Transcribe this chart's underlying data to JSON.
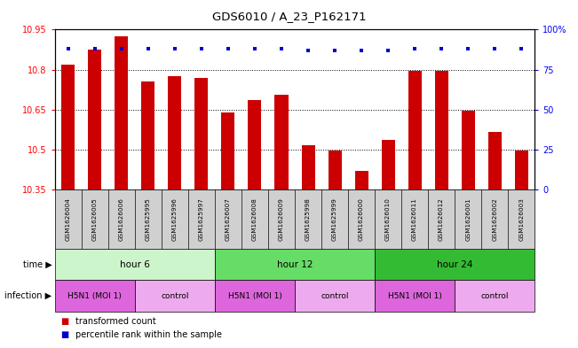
{
  "title": "GDS6010 / A_23_P162171",
  "samples": [
    "GSM1626004",
    "GSM1626005",
    "GSM1626006",
    "GSM1625995",
    "GSM1625996",
    "GSM1625997",
    "GSM1626007",
    "GSM1626008",
    "GSM1626009",
    "GSM1625998",
    "GSM1625999",
    "GSM1626000",
    "GSM1626010",
    "GSM1626011",
    "GSM1626012",
    "GSM1626001",
    "GSM1626002",
    "GSM1626003"
  ],
  "bar_values": [
    10.82,
    10.875,
    10.925,
    10.755,
    10.775,
    10.77,
    10.64,
    10.685,
    10.705,
    10.515,
    10.495,
    10.42,
    10.535,
    10.795,
    10.795,
    10.645,
    10.565,
    10.495
  ],
  "percentile_values": [
    88,
    88,
    88,
    88,
    88,
    88,
    88,
    88,
    88,
    87,
    87,
    87,
    87,
    88,
    88,
    88,
    88,
    88
  ],
  "ylim_left": [
    10.35,
    10.95
  ],
  "ylim_right": [
    0,
    100
  ],
  "yticks_left": [
    10.35,
    10.5,
    10.65,
    10.8,
    10.95
  ],
  "ytick_labels_left": [
    "10.35",
    "10.5",
    "10.65",
    "10.8",
    "10.95"
  ],
  "yticks_right": [
    0,
    25,
    50,
    75,
    100
  ],
  "ytick_labels_right": [
    "0",
    "25",
    "50",
    "75",
    "100%"
  ],
  "bar_color": "#CC0000",
  "dot_color": "#0000CC",
  "bar_bottom": 10.35,
  "time_groups": [
    {
      "label": "hour 6",
      "start": 0,
      "end": 6,
      "color": "#ccf5cc"
    },
    {
      "label": "hour 12",
      "start": 6,
      "end": 12,
      "color": "#66dd66"
    },
    {
      "label": "hour 24",
      "start": 12,
      "end": 18,
      "color": "#33bb33"
    }
  ],
  "infection_groups": [
    {
      "label": "H5N1 (MOI 1)",
      "start": 0,
      "end": 3,
      "color": "#dd66dd"
    },
    {
      "label": "control",
      "start": 3,
      "end": 6,
      "color": "#eeaaee"
    },
    {
      "label": "H5N1 (MOI 1)",
      "start": 6,
      "end": 9,
      "color": "#dd66dd"
    },
    {
      "label": "control",
      "start": 9,
      "end": 12,
      "color": "#eeaaee"
    },
    {
      "label": "H5N1 (MOI 1)",
      "start": 12,
      "end": 15,
      "color": "#dd66dd"
    },
    {
      "label": "control",
      "start": 15,
      "end": 18,
      "color": "#eeaaee"
    }
  ],
  "legend_bar_label": "transformed count",
  "legend_dot_label": "percentile rank within the sample",
  "n_samples": 18,
  "background_color": "#ffffff",
  "sample_label_bg": "#d0d0d0",
  "grid_linestyle": "dotted",
  "bar_width": 0.5
}
